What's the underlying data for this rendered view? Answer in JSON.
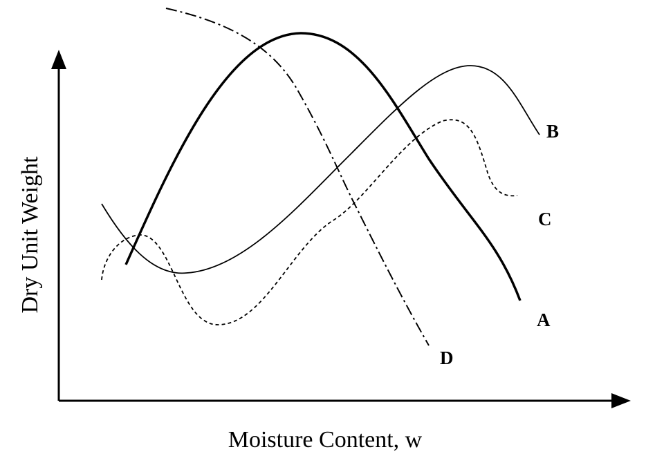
{
  "diagram": {
    "y_axis_label": "Dry Unit Weight",
    "x_axis_label": "Moisture Content, w",
    "curves": [
      {
        "label": "A"
      },
      {
        "label": "B"
      },
      {
        "label": "C"
      },
      {
        "label": "D"
      }
    ]
  }
}
